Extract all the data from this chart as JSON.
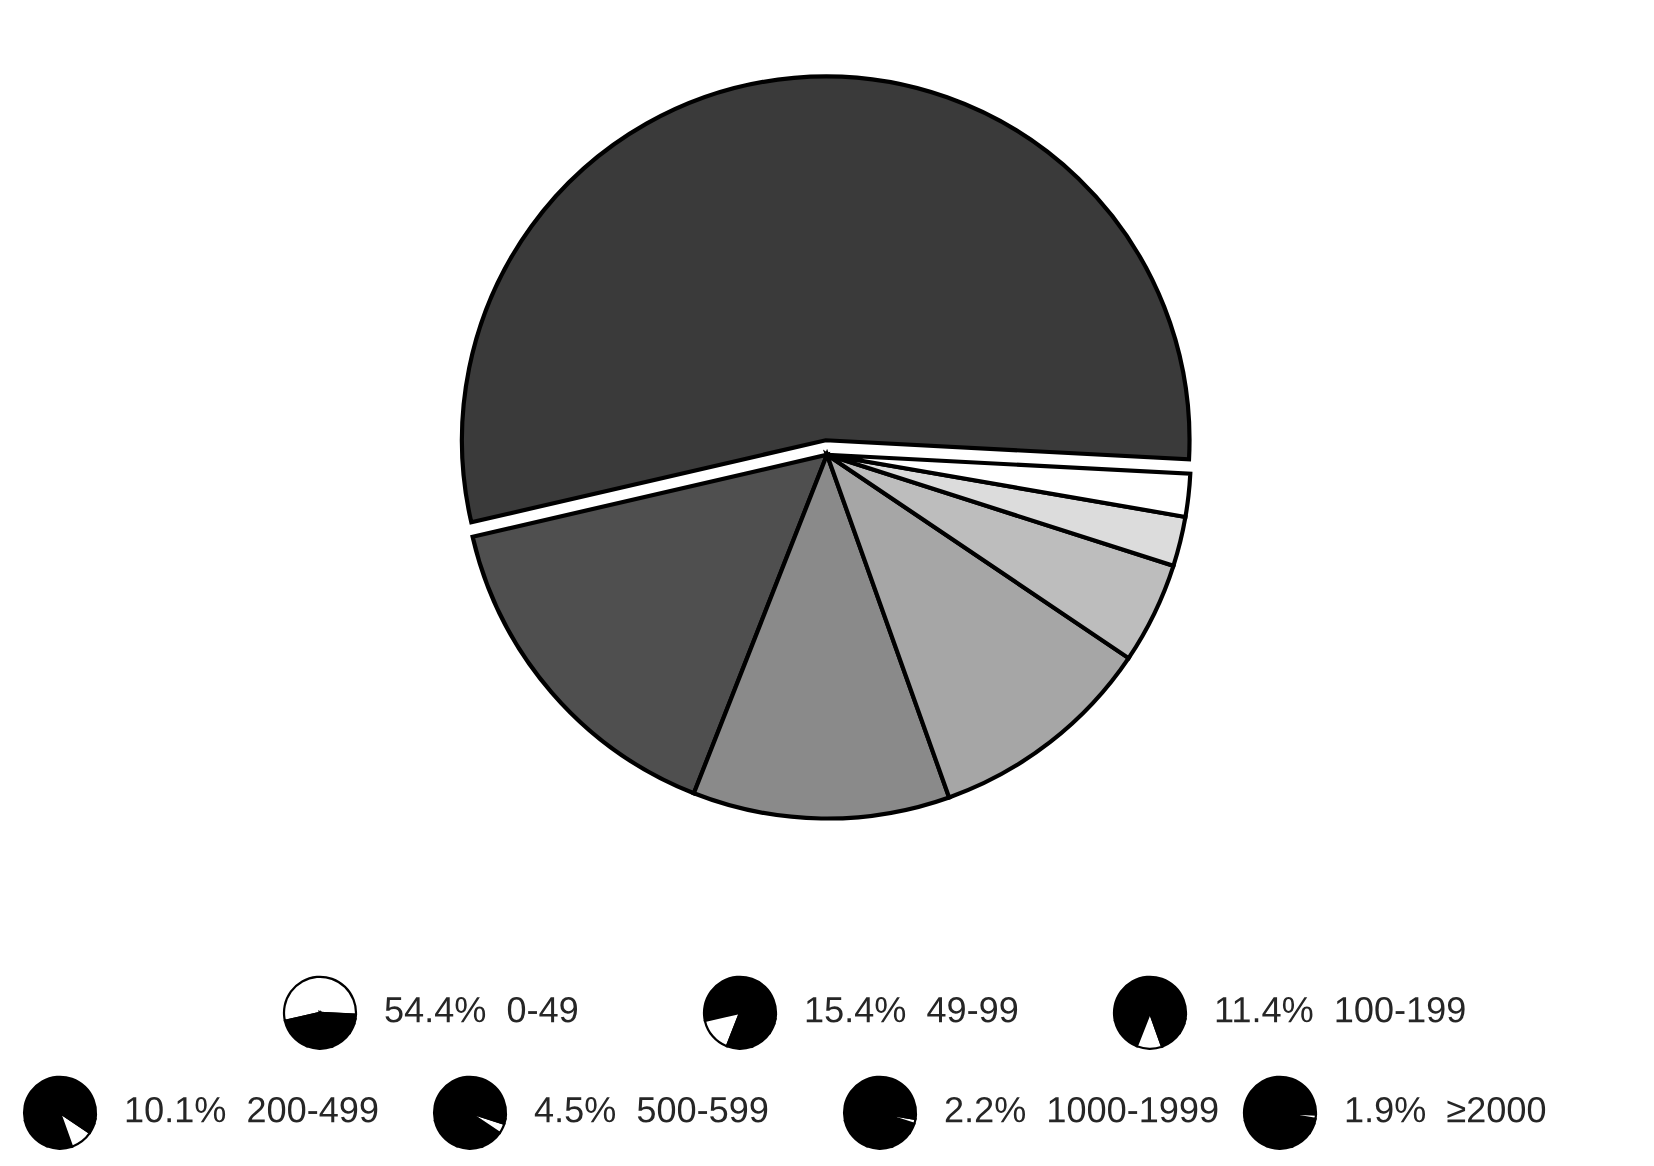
{
  "chart_data": {
    "type": "pie",
    "categories": [
      "54.4%  0-49",
      "15.4%  49-99",
      "11.4%  100-199",
      "10.1%  200-499",
      "4.5%  500-599",
      "2.2%  1000-1999",
      "1.9%  ≥2000"
    ],
    "values": [
      54.4,
      15.4,
      11.4,
      10.1,
      4.5,
      2.2,
      1.9
    ],
    "colors": [
      "#3a3a3a",
      "#4f4f4f",
      "#8a8a8a",
      "#a6a6a6",
      "#bdbdbd",
      "#dcdcdc",
      "#ffffff"
    ],
    "legend": "bottom"
  }
}
